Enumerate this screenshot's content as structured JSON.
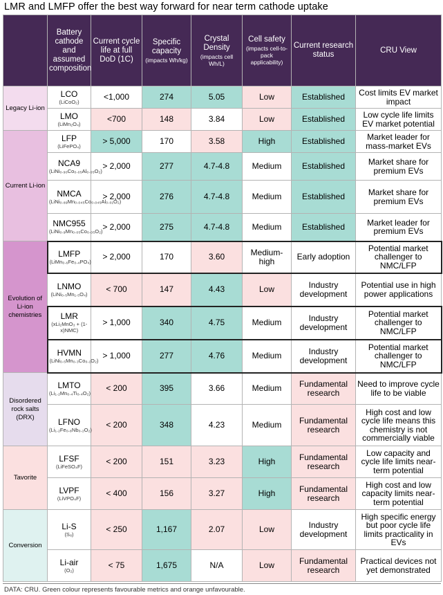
{
  "title": "LMR and LMFP offer the best way forward for near term cathode uptake",
  "headers": [
    {
      "label": "Battery cathode and assumed composition",
      "sub": ""
    },
    {
      "label": "Current cycle life at full DoD (1C)",
      "sub": ""
    },
    {
      "label": "Specific capacity",
      "sub": "(impacts Wh/kg)"
    },
    {
      "label": "Crystal Density",
      "sub": "(impacts cell Wh/L)"
    },
    {
      "label": "Cell safety",
      "sub": "(impacts cell-to-pack applicability)"
    },
    {
      "label": "Current research status",
      "sub": ""
    },
    {
      "label": "CRU View",
      "sub": ""
    }
  ],
  "groups": [
    {
      "name": "Legacy Li-ion",
      "color": "#f3dcee",
      "rows": [
        {
          "cathode": "LCO",
          "formula": "(LiCoO₂)",
          "cycle": "<1,000",
          "capacity": "274",
          "density": "5.05",
          "safety": "Low",
          "status": "Established",
          "view": "Cost limits EV market impact",
          "c": [
            "",
            "",
            "green",
            "green",
            "pink",
            "green",
            ""
          ]
        },
        {
          "cathode": "LMO",
          "formula": "(LiMn₂O₄)",
          "cycle": "<700",
          "capacity": "148",
          "density": "3.84",
          "safety": "Low",
          "status": "Established",
          "view": "Low cycle life limits EV market potential",
          "c": [
            "",
            "pink",
            "pink",
            "",
            "pink",
            "green",
            ""
          ]
        }
      ]
    },
    {
      "name": "Current Li-ion",
      "color": "#e8bfe0",
      "rows": [
        {
          "cathode": "LFP",
          "formula": "(LiFePO₄)",
          "cycle": "> 5,000",
          "capacity": "170",
          "density": "3.58",
          "safety": "High",
          "status": "Established",
          "view": "Market leader for mass-market EVs",
          "c": [
            "",
            "green",
            "",
            "pink",
            "green",
            "green",
            ""
          ]
        },
        {
          "cathode": "NCA9",
          "formula": "(LiNi₀.₉₀Co₀.₀₅Al₀.₀₅O₂)",
          "cycle": "> 2,000",
          "capacity": "277",
          "density": "4.7-4.8",
          "safety": "Medium",
          "status": "Established",
          "view": "Market share for premium EVs",
          "c": [
            "",
            "",
            "green",
            "green",
            "",
            "green",
            ""
          ]
        },
        {
          "cathode": "NMCA",
          "formula": "(LiNi₀.₈₉Mn₀.₀₄₅Co₀.₀₄₅Al₀.₀₁O₂)",
          "cycle": "> 2,000",
          "capacity": "276",
          "density": "4.7-4.8",
          "safety": "Medium",
          "status": "Established",
          "view": "Market share for premium EVs",
          "c": [
            "",
            "",
            "green",
            "green",
            "",
            "green",
            ""
          ]
        },
        {
          "cathode": "NMC955",
          "formula": "(LiNi₀.₉Mn₀.₀₅Co₀.₀₅O₂)",
          "cycle": "> 2,000",
          "capacity": "275",
          "density": "4.7-4.8",
          "safety": "Medium",
          "status": "Established",
          "view": "Market leader for premium EVs",
          "c": [
            "",
            "",
            "green",
            "green",
            "",
            "green",
            ""
          ]
        }
      ]
    },
    {
      "name": "Evolution of Li-ion chemistries",
      "color": "#d595cd",
      "rows": [
        {
          "cathode": "LMFP",
          "formula": "(LiMn₀.₆Fe₀.₄PO₄)",
          "cycle": "> 2,000",
          "capacity": "170",
          "density": "3.60",
          "safety": "Medium-high",
          "status": "Early adoption",
          "view": "Potential market challenger to NMC/LFP",
          "c": [
            "",
            "",
            "",
            "pink",
            "",
            "",
            ""
          ],
          "thick": true
        },
        {
          "cathode": "LNMO",
          "formula": "(LiNi₀.₅Mn₁.₅O₄)",
          "cycle": "< 700",
          "capacity": "147",
          "density": "4.43",
          "safety": "Low",
          "status": "Industry development",
          "view": "Potential use in high power applications",
          "c": [
            "",
            "pink",
            "pink",
            "green",
            "pink",
            "",
            ""
          ]
        },
        {
          "cathode": "LMR",
          "formula": "(xLi₂MnO₃ + (1-x)NMC)",
          "cycle": "> 1,000",
          "capacity": "340",
          "density": "4.75",
          "safety": "Medium",
          "status": "Industry development",
          "view": "Potential market challenger to NMC/LFP",
          "c": [
            "",
            "",
            "green",
            "green",
            "",
            "",
            ""
          ],
          "thick": true
        },
        {
          "cathode": "HVMN",
          "formula": "(LiNi₀.₅Mn₀.₃Co₀.₁O₂)",
          "cycle": "> 1,000",
          "capacity": "277",
          "density": "4.76",
          "safety": "Medium",
          "status": "Industry development",
          "view": "Potential market challenger to NMC/LFP",
          "c": [
            "",
            "",
            "green",
            "green",
            "",
            "",
            ""
          ],
          "thick": true
        }
      ]
    },
    {
      "name": "Disordered rock salts (DRX)",
      "color": "#e6dced",
      "rows": [
        {
          "cathode": "LMTO",
          "formula": "(Li₁.₂Mn₀.₄Ti₀.₄O₂)",
          "cycle": "< 200",
          "capacity": "395",
          "density": "3.66",
          "safety": "Medium",
          "status": "Fundamental research",
          "view": "Need to improve cycle life to be viable",
          "c": [
            "",
            "pink",
            "green",
            "",
            "",
            "pink",
            ""
          ]
        },
        {
          "cathode": "LFNO",
          "formula": "(Li₁.₂Fe₀.₈Nb₀.₂O₂)",
          "cycle": "< 200",
          "capacity": "348",
          "density": "4.23",
          "safety": "Medium",
          "status": "Fundamental research",
          "view": "High cost and low cycle life means this chemistry is not commercially viable",
          "c": [
            "",
            "pink",
            "green",
            "",
            "",
            "pink",
            ""
          ]
        }
      ]
    },
    {
      "name": "Tavorite",
      "color": "#fbe0e0",
      "rows": [
        {
          "cathode": "LFSF",
          "formula": "(LiFeSO₄F)",
          "cycle": "< 200",
          "capacity": "151",
          "density": "3.23",
          "safety": "High",
          "status": "Fundamental research",
          "view": "Low capacity and cycle life limits near-term potential",
          "c": [
            "",
            "pink",
            "pink",
            "pink",
            "green",
            "pink",
            ""
          ]
        },
        {
          "cathode": "LVPF",
          "formula": "(LiVPO₄F)",
          "cycle": "< 400",
          "capacity": "156",
          "density": "3.27",
          "safety": "High",
          "status": "Fundamental research",
          "view": "High cost and low capacity limits near-term potential",
          "c": [
            "",
            "pink",
            "pink",
            "pink",
            "green",
            "pink",
            ""
          ]
        }
      ]
    },
    {
      "name": "Conversion",
      "color": "#dff2f0",
      "rows": [
        {
          "cathode": "Li-S",
          "formula": "(S₈)",
          "cycle": "< 250",
          "capacity": "1,167",
          "density": "2.07",
          "safety": "Low",
          "status": "Industry development",
          "view": "High specific energy but poor cycle life limits practicality in EVs",
          "c": [
            "",
            "pink",
            "green",
            "pink",
            "pink",
            "",
            ""
          ]
        },
        {
          "cathode": "Li-air",
          "formula": "(O₂)",
          "cycle": "< 75",
          "capacity": "1,675",
          "density": "N/A",
          "safety": "Low",
          "status": "Fundamental research",
          "view": "Practical devices not yet demonstrated",
          "c": [
            "",
            "pink",
            "green",
            "",
            "pink",
            "pink",
            ""
          ]
        }
      ]
    }
  ],
  "footer": "DATA: CRU. Green colour represents favourable metrics and orange unfavourable.",
  "colors": {
    "header": "#452955",
    "green": "#a8dcd4",
    "pink": "#fbe0e0"
  }
}
